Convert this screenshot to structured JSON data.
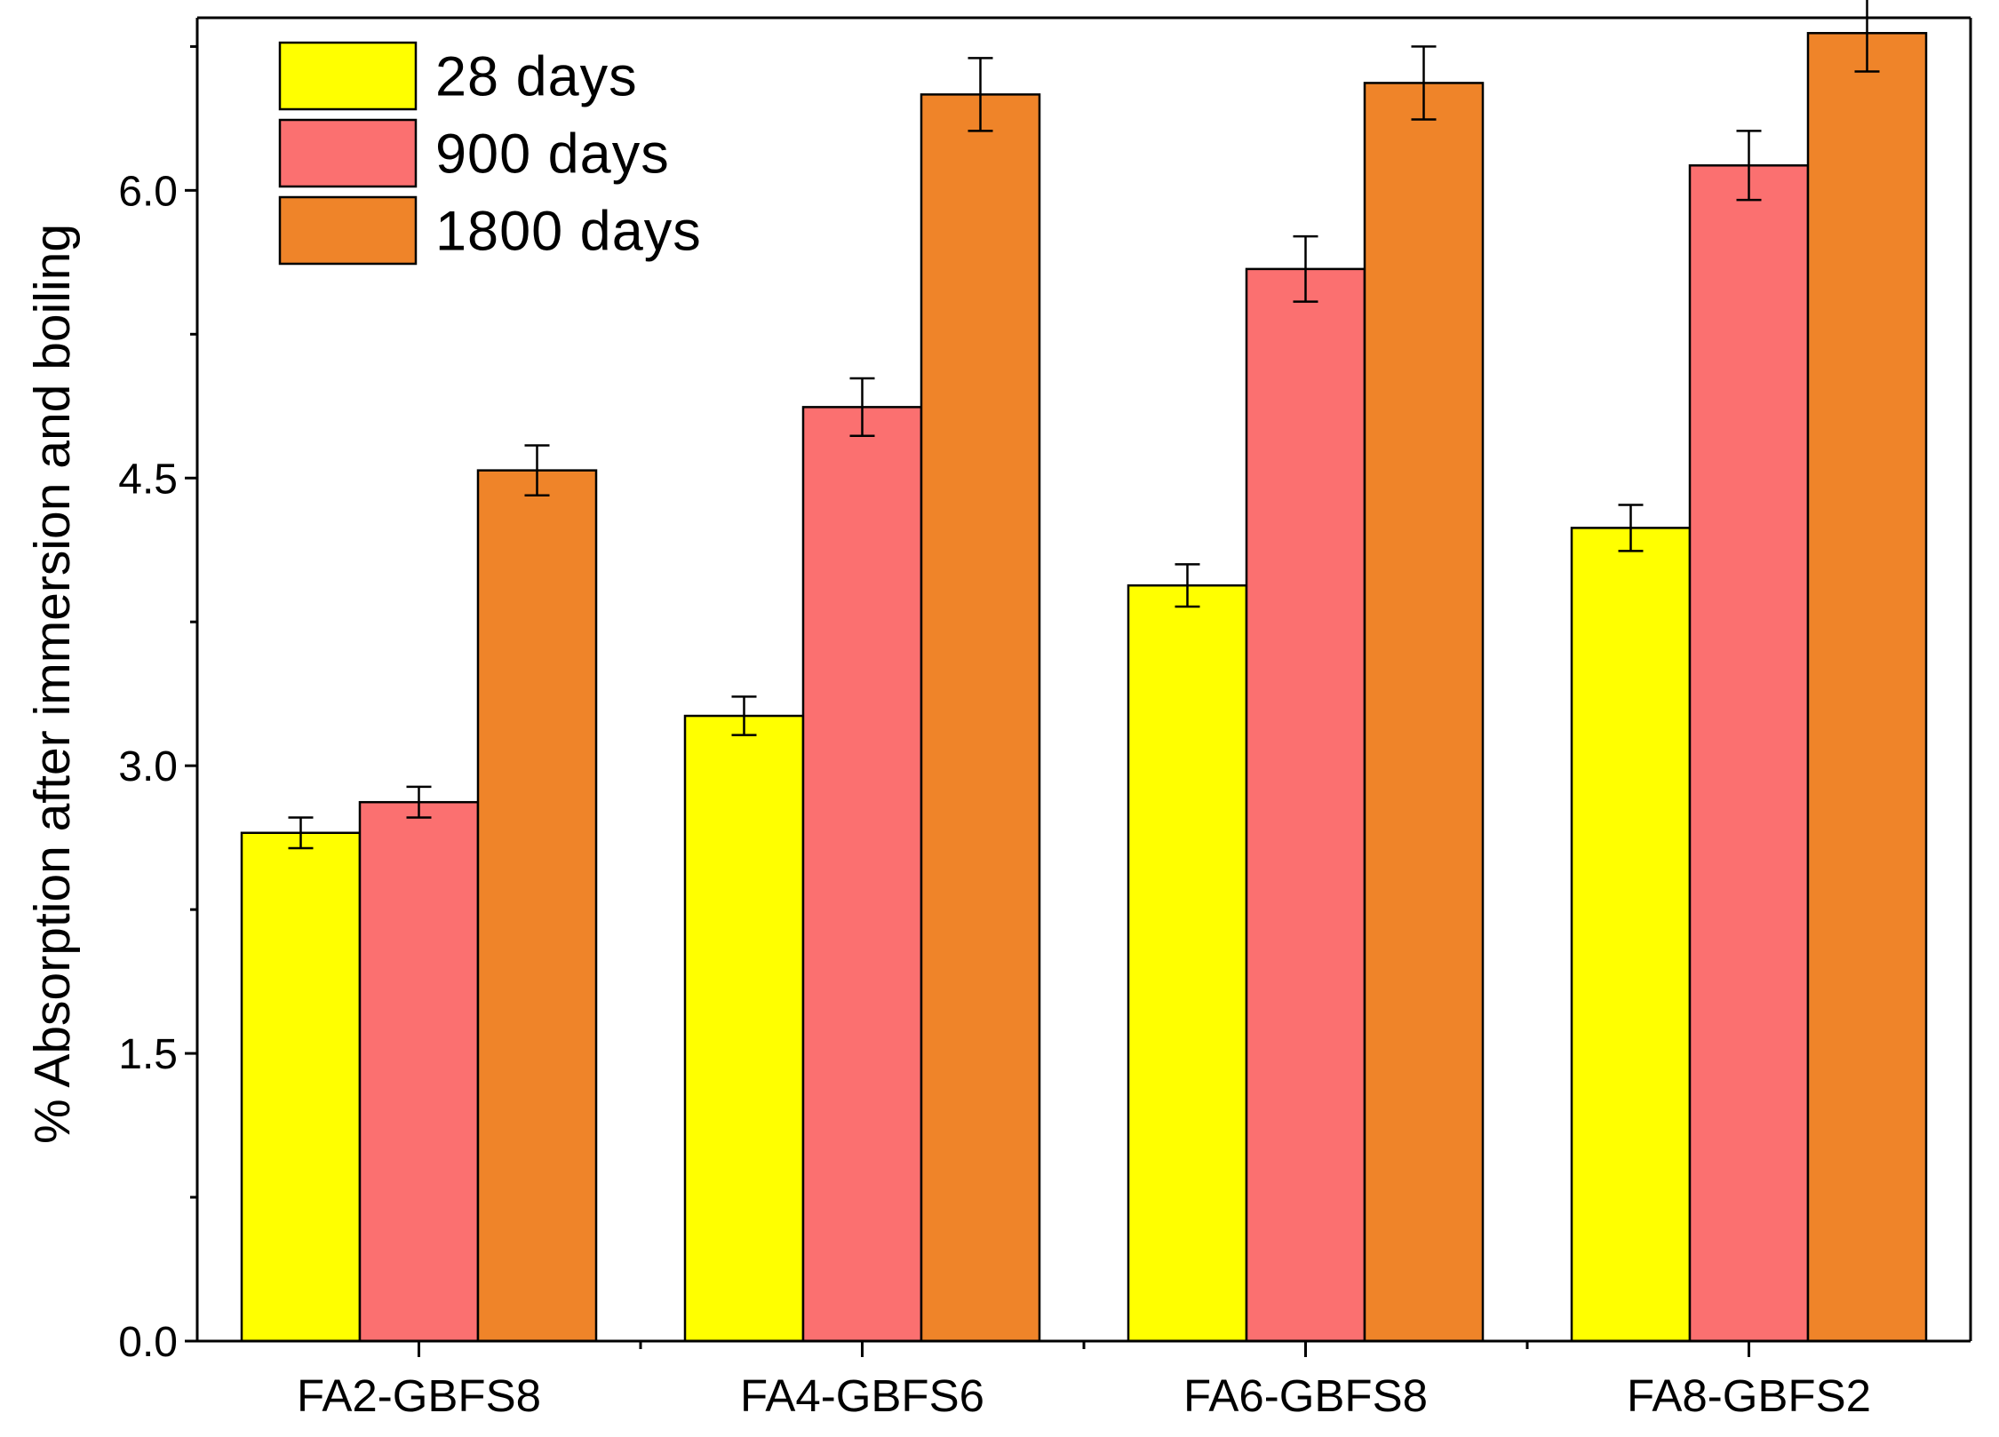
{
  "chart_data": {
    "type": "bar",
    "title": "",
    "xlabel": "",
    "ylabel": "% Absorption after immersion and boiling",
    "ylim": [
      0,
      6.9
    ],
    "yticks": [
      0.0,
      1.5,
      3.0,
      4.5,
      6.0
    ],
    "ytick_labels": [
      "0.0",
      "1.5",
      "3.0",
      "4.5",
      "6.0"
    ],
    "categories": [
      "FA2-GBFS8",
      "FA4-GBFS6",
      "FA6-GBFS8",
      "FA8-GBFS2"
    ],
    "legend_position": "top-left",
    "series": [
      {
        "name": "28 days",
        "color": "#ffff00",
        "values": [
          2.65,
          3.26,
          3.94,
          4.24
        ],
        "errors": [
          0.08,
          0.1,
          0.11,
          0.12
        ]
      },
      {
        "name": "900 days",
        "color": "#fb7070",
        "values": [
          2.81,
          4.87,
          5.59,
          6.13
        ],
        "errors": [
          0.08,
          0.15,
          0.17,
          0.18
        ]
      },
      {
        "name": "1800 days",
        "color": "#ef8429",
        "values": [
          4.54,
          6.5,
          6.56,
          6.82
        ],
        "errors": [
          0.13,
          0.19,
          0.19,
          0.2
        ]
      }
    ]
  }
}
